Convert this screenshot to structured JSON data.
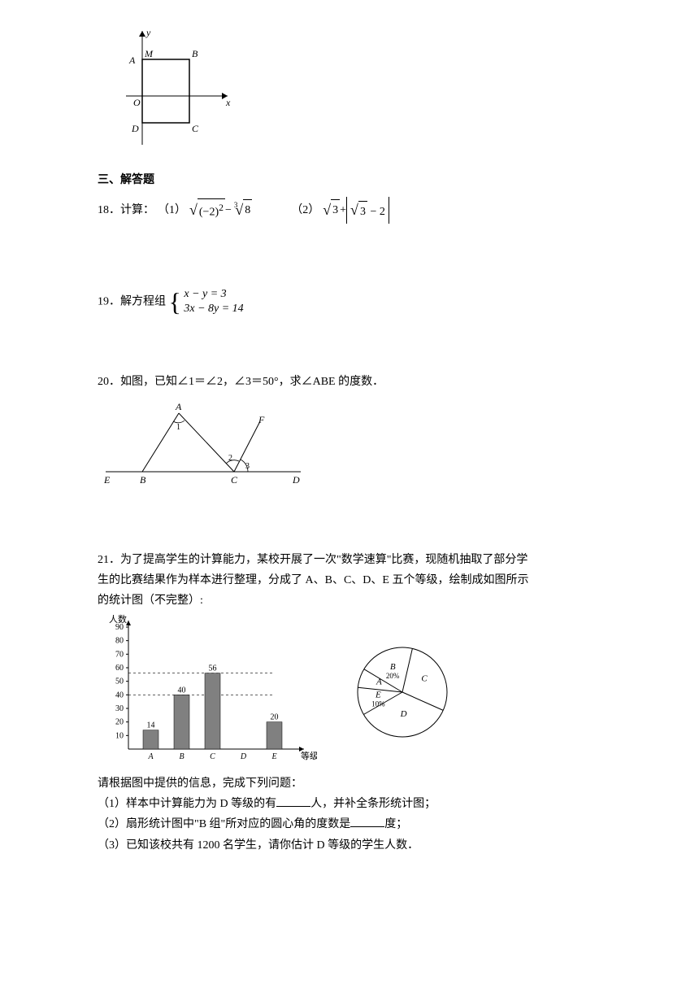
{
  "fig_square": {
    "labels": {
      "A": "A",
      "M": "M",
      "B": "B",
      "O": "O",
      "D": "D",
      "C": "C",
      "x": "x",
      "y": "y"
    }
  },
  "section": {
    "title": "三、解答题"
  },
  "q18": {
    "prefix": "18．计算：",
    "part1_label": "（1）",
    "expr1": {
      "inner": "(−2)",
      "exp": "2",
      "minus": " − ",
      "cuberoot_idx": "3",
      "cuberoot_body": "8"
    },
    "part2_label": "（2）",
    "expr2": {
      "sqrt_a": "3",
      "plus": " + ",
      "abs_sqrt": "3",
      "abs_tail": " − 2"
    }
  },
  "q19": {
    "prefix": "19．解方程组 ",
    "eq1": "x − y = 3",
    "eq2": "3x − 8y = 14"
  },
  "q20": {
    "text": "20．如图，已知∠1＝∠2，∠3＝50°，求∠ABE 的度数．",
    "labels": {
      "A": "A",
      "F": "F",
      "E": "E",
      "B": "B",
      "C": "C",
      "D": "D",
      "n1": "1",
      "n2": "2",
      "n3": "3"
    }
  },
  "q21": {
    "p1": "21．为了提高学生的计算能力，某校开展了一次\"数学速算\"比赛，现随机抽取了部分学",
    "p2": "生的比赛结果作为样本进行整理，分成了 A、B、C、D、E 五个等级，绘制成如图所示",
    "p3": "的统计图（不完整）:",
    "bar": {
      "ylabel": "人数",
      "xlabel": "等级",
      "categories": [
        "A",
        "B",
        "C",
        "D",
        "E"
      ],
      "values": [
        14,
        40,
        56,
        null,
        20
      ],
      "value_labels": [
        "14",
        "40",
        "56",
        "",
        "20"
      ],
      "bar_color": "#808080",
      "ylim": [
        0,
        90
      ],
      "ytick_step": 10,
      "yticks": [
        "90",
        "80",
        "70",
        "60",
        "50",
        "40",
        "30",
        "20",
        "10"
      ],
      "dashed_refs": [
        40,
        56
      ]
    },
    "pie": {
      "slices": [
        {
          "label": "E",
          "sublabel": "10%",
          "angle_start": 240,
          "angle_end": 276
        },
        {
          "label": "A",
          "sublabel": "",
          "angle_start": 276,
          "angle_end": 301
        },
        {
          "label": "B",
          "sublabel": "20%",
          "angle_start": 301,
          "angle_end": 373
        },
        {
          "label": "C",
          "sublabel": "",
          "angle_start": 13,
          "angle_end": 114
        },
        {
          "label": "D",
          "sublabel": "",
          "angle_start": 114,
          "angle_end": 240
        }
      ],
      "stroke": "#000000",
      "fill": "#ffffff"
    },
    "qline": "请根据图中提供的信息，完成下列问题：",
    "sub1a": "（1）样本中计算能力为 D 等级的有",
    "sub1b": "人，并补全条形统计图；",
    "sub2a": "（2）扇形统计图中\"B 组\"所对应的圆心角的度数是",
    "sub2b": "度；",
    "sub3": "（3）已知该校共有 1200 名学生，请你估计 D 等级的学生人数．"
  }
}
